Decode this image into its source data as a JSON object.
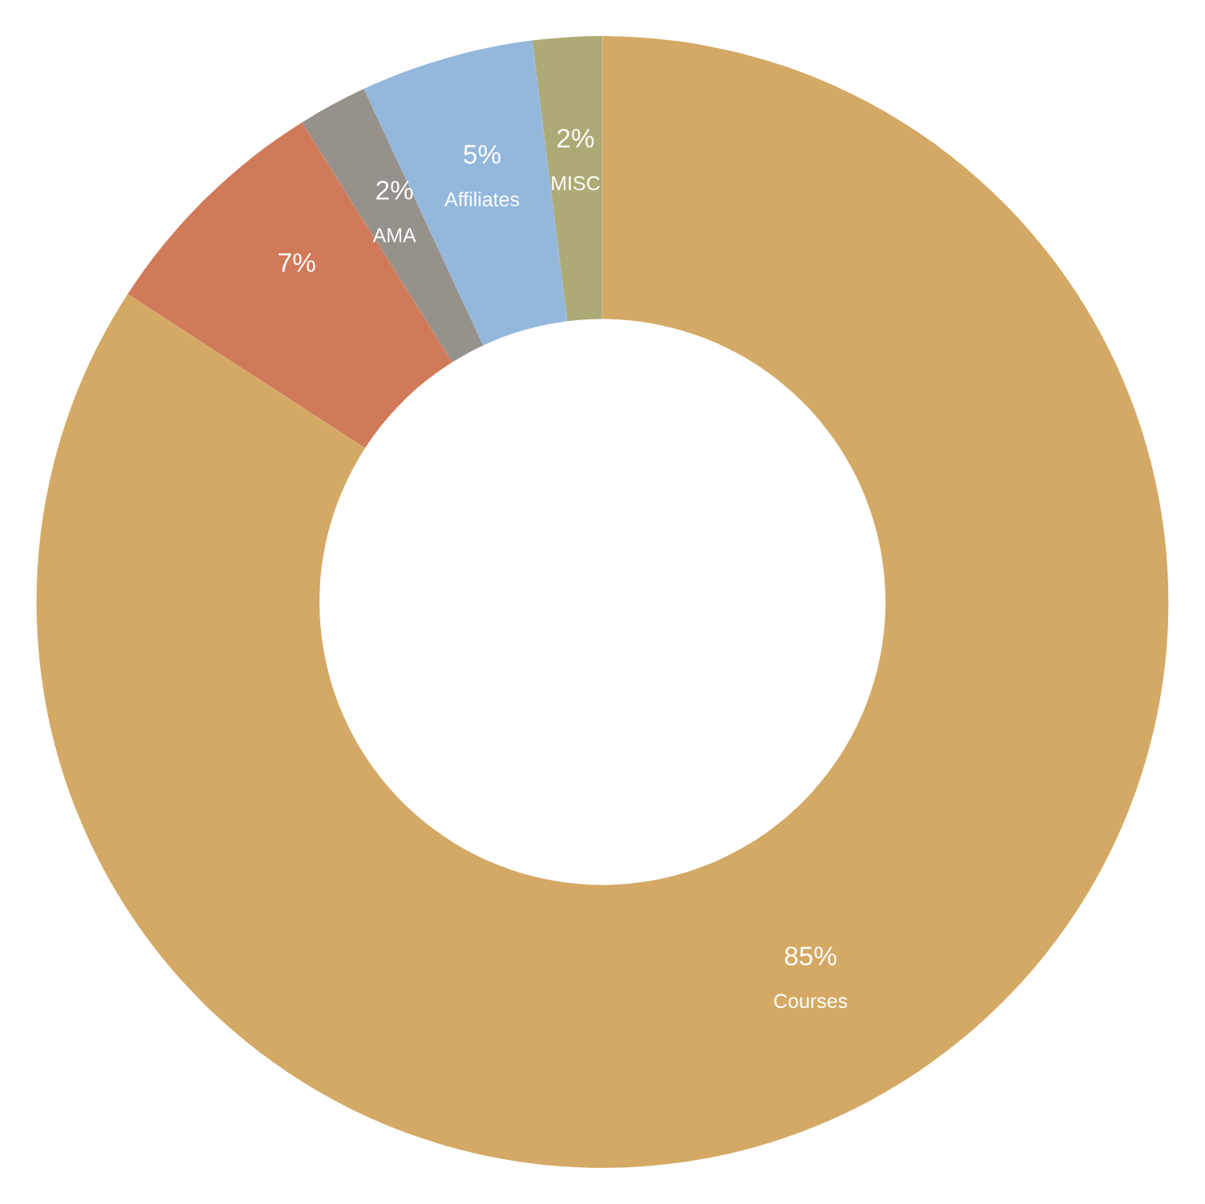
{
  "chart_data": {
    "type": "donut",
    "categories": [
      "MISC",
      "Affiliates",
      "AMA",
      null,
      "Courses"
    ],
    "values": [
      2,
      5,
      2,
      7,
      85
    ],
    "value_labels": [
      "2%",
      "5%",
      "2%",
      "7%",
      "85%"
    ],
    "colors": [
      "#adaa75",
      "#94b8dc",
      "#97918b",
      "#d07a59",
      "#d4a965"
    ]
  }
}
